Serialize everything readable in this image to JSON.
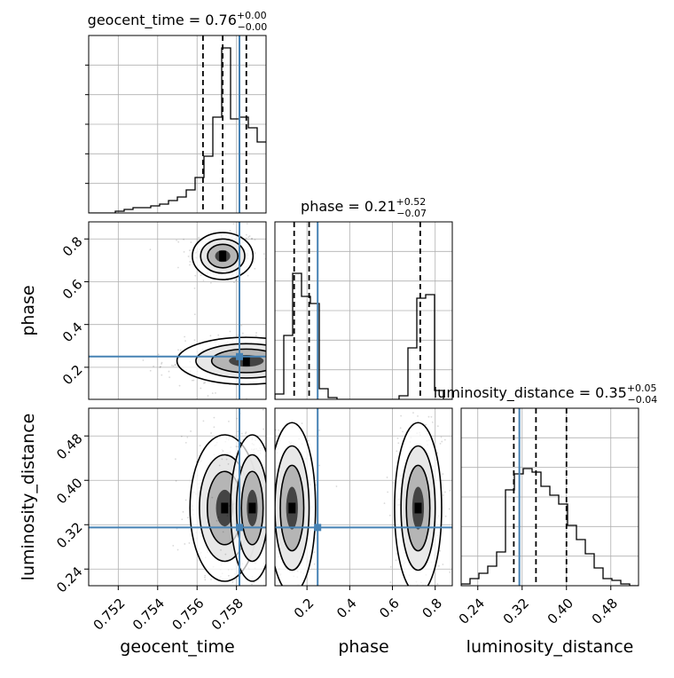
{
  "chart_data": {
    "type": "corner",
    "truth_color": "#4682b4",
    "parameters": [
      {
        "name": "geocent_time",
        "label": "geocent_time",
        "title": {
          "prefix": "geocent_time = ",
          "value": "0.76",
          "upper": "+0.00",
          "lower": "−0.00"
        },
        "truth": 0.75815,
        "range": [
          0.7505,
          0.7595
        ],
        "ticks": [
          0.752,
          0.754,
          0.756,
          0.758
        ],
        "tick_labels": [
          "0.752",
          "0.754",
          "0.756",
          "0.758"
        ],
        "quantiles": [
          0.7563,
          0.7573,
          0.7585
        ],
        "hist_edges_start": 0.7505,
        "hist_bin_width": 0.00045,
        "hist_counts": [
          0,
          0,
          0,
          1,
          2,
          3,
          3,
          4,
          5,
          7,
          9,
          13,
          20,
          32,
          54,
          93,
          53,
          54,
          48,
          40
        ]
      },
      {
        "name": "phase",
        "label": "phase",
        "title": {
          "prefix": "phase = ",
          "value": "0.21",
          "upper": "+0.52",
          "lower": "−0.07"
        },
        "truth": 0.25,
        "range": [
          0.05,
          0.88
        ],
        "ticks": [
          0.2,
          0.4,
          0.6,
          0.8
        ],
        "tick_labels": [
          "0.2",
          "0.4",
          "0.6",
          "0.8"
        ],
        "quantiles": [
          0.14,
          0.21,
          0.73
        ],
        "hist_edges_start": 0.05,
        "hist_bin_width": 0.0415,
        "hist_counts": [
          3,
          36,
          71,
          58,
          54,
          6,
          1,
          0,
          0,
          0,
          0,
          0,
          0,
          0,
          2,
          29,
          57,
          59,
          5,
          0
        ]
      },
      {
        "name": "luminosity_distance",
        "label": "luminosity_distance",
        "title": {
          "prefix": "luminosity_distance = ",
          "value": "0.35",
          "upper": "+0.05",
          "lower": "−0.04"
        },
        "truth": 0.315,
        "range": [
          0.21,
          0.53
        ],
        "ticks": [
          0.24,
          0.32,
          0.4,
          0.48
        ],
        "tick_labels": [
          "0.24",
          "0.32",
          "0.40",
          "0.48"
        ],
        "quantiles": [
          0.305,
          0.345,
          0.4
        ],
        "hist_edges_start": 0.21,
        "hist_bin_width": 0.016,
        "hist_counts": [
          1,
          4,
          7,
          11,
          19,
          54,
          63,
          66,
          64,
          56,
          51,
          46,
          34,
          26,
          18,
          10,
          4,
          3,
          1,
          0
        ]
      }
    ],
    "hist_ylim": [
      0,
      100
    ],
    "pairs": [
      {
        "x": "geocent_time",
        "y": "phase",
        "modes": [
          {
            "cx": 0.7573,
            "cy": 0.72,
            "rx": 0.0007,
            "ry": 0.05
          },
          {
            "cx": 0.7585,
            "cy": 0.23,
            "rx": 0.0016,
            "ry": 0.05
          }
        ]
      },
      {
        "x": "geocent_time",
        "y": "luminosity_distance",
        "modes": [
          {
            "cx": 0.7574,
            "cy": 0.35,
            "rx": 0.0008,
            "ry": 0.06
          },
          {
            "cx": 0.7588,
            "cy": 0.35,
            "rx": 0.0005,
            "ry": 0.06
          }
        ]
      },
      {
        "x": "phase",
        "y": "luminosity_distance",
        "modes": [
          {
            "cx": 0.13,
            "cy": 0.35,
            "rx": 0.05,
            "ry": 0.07
          },
          {
            "cx": 0.72,
            "cy": 0.35,
            "rx": 0.05,
            "ry": 0.07
          }
        ]
      }
    ],
    "grid": true
  }
}
